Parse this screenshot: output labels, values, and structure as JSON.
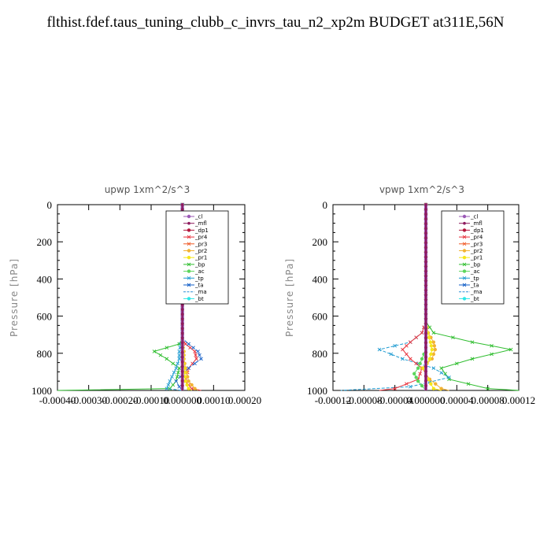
{
  "title": "flthist.fdef.taus_tuning_clubb_c_invrs_tau_n2_xp2m  BUDGET at311E,56N",
  "legend_entries": [
    {
      "name": "_cl",
      "color": "#9b59b6",
      "marker": "circle"
    },
    {
      "name": "_mfl",
      "color": "#8e1b5e",
      "marker": "dot"
    },
    {
      "name": "_dp1",
      "color": "#b3163c",
      "marker": "circle"
    },
    {
      "name": "_pr4",
      "color": "#e8323c",
      "marker": "x"
    },
    {
      "name": "_pr3",
      "color": "#f05a28",
      "marker": "x"
    },
    {
      "name": "_pr2",
      "color": "#f2b233",
      "marker": "circle"
    },
    {
      "name": "_pr1",
      "color": "#f5e61a",
      "marker": "circle"
    },
    {
      "name": "_bp",
      "color": "#2ebd2e",
      "marker": "x"
    },
    {
      "name": "_ac",
      "color": "#5cd65c",
      "marker": "circle"
    },
    {
      "name": "_tp",
      "color": "#1f9bd1",
      "marker": "x"
    },
    {
      "name": "_ta",
      "color": "#1560c8",
      "marker": "x"
    },
    {
      "name": "_ma",
      "color": "#2d8fd5",
      "marker": "line"
    },
    {
      "name": "_bt",
      "color": "#2ee6e6",
      "marker": "circle"
    }
  ],
  "chart_data": [
    {
      "type": "line",
      "title": "upwp   1xm^2/s^3",
      "ylabel": "Pressure [hPa]",
      "xlabel": "",
      "xlim": [
        -0.0004,
        0.0002
      ],
      "ylim": [
        1000,
        0
      ],
      "xticks": [
        -0.0004,
        -0.0003,
        -0.0002,
        -0.0001,
        0.0,
        0.0001,
        0.0002
      ],
      "xtick_labels": [
        "-0.00040",
        "-0.00030",
        "-0.00020",
        "-0.00010",
        "0.000000",
        "0.00010",
        "0.00020"
      ],
      "yticks": [
        0,
        200,
        400,
        600,
        800,
        1000
      ],
      "ytick_labels": [
        "0",
        "200",
        "400",
        "600",
        "800",
        "1000"
      ],
      "legend_position": "top-right",
      "series": [
        {
          "name": "_bp",
          "x": [
            0,
            0,
            -1e-05,
            -9e-05,
            -5e-05,
            -1e-05,
            -2e-05,
            -4e-05,
            -0.0004
          ],
          "y": [
            0,
            720,
            750,
            790,
            830,
            880,
            950,
            990,
            1000
          ]
        },
        {
          "name": "_pr4",
          "x": [
            0,
            0,
            1e-05,
            4e-05,
            4.5e-05,
            2e-05,
            1e-05,
            3e-05,
            6e-05
          ],
          "y": [
            0,
            720,
            750,
            790,
            830,
            880,
            950,
            990,
            1000
          ]
        },
        {
          "name": "_ta",
          "x": [
            0,
            0,
            2e-05,
            5e-05,
            6e-05,
            2e-05,
            -2e-05,
            -1e-05,
            0
          ],
          "y": [
            0,
            720,
            750,
            790,
            830,
            880,
            950,
            980,
            1000
          ]
        },
        {
          "name": "_tp",
          "x": [
            0,
            0,
            -5e-06,
            -1e-05,
            -1e-05,
            -2e-05,
            -4e-05,
            -5e-05,
            0
          ],
          "y": [
            0,
            720,
            750,
            790,
            830,
            880,
            950,
            990,
            1000
          ]
        },
        {
          "name": "_pr2",
          "x": [
            0,
            0,
            0,
            5e-06,
            5e-06,
            1e-05,
            2e-05,
            4e-05,
            5e-05
          ],
          "y": [
            0,
            720,
            750,
            790,
            830,
            880,
            950,
            990,
            1000
          ]
        },
        {
          "name": "_pr1",
          "x": [
            0,
            0,
            0,
            3e-06,
            3e-06,
            6e-06,
            1e-05,
            2e-05,
            3e-05
          ],
          "y": [
            0,
            720,
            750,
            790,
            830,
            880,
            950,
            990,
            1000
          ]
        },
        {
          "name": "_cl",
          "x": [
            0,
            0
          ],
          "y": [
            0,
            1000
          ]
        },
        {
          "name": "_mfl",
          "x": [
            0,
            0
          ],
          "y": [
            0,
            1000
          ]
        }
      ]
    },
    {
      "type": "line",
      "title": "vpwp   1xm^2/s^3",
      "ylabel": "Pressure [hPa]",
      "xlabel": "",
      "xlim": [
        -0.00012,
        0.00012
      ],
      "ylim": [
        1000,
        0
      ],
      "xticks": [
        -0.00012,
        -8e-05,
        -4e-05,
        0.0,
        4e-05,
        8e-05,
        0.00012
      ],
      "xtick_labels": [
        "-0.00012",
        "-0.00008",
        "-0.00004",
        "0.000000",
        "0.00004",
        "0.00008",
        "0.00012"
      ],
      "yticks": [
        0,
        200,
        400,
        600,
        800,
        1000
      ],
      "ytick_labels": [
        "0",
        "200",
        "400",
        "600",
        "800",
        "1000"
      ],
      "legend_position": "top-right",
      "series": [
        {
          "name": "_bp",
          "x": [
            0,
            0,
            1e-05,
            6e-05,
            0.00011,
            6e-05,
            2e-05,
            3e-05,
            8e-05,
            0.00012
          ],
          "y": [
            0,
            630,
            690,
            740,
            780,
            830,
            880,
            940,
            990,
            1000
          ]
        },
        {
          "name": "_tp",
          "x": [
            0,
            0,
            -5e-06,
            -2e-05,
            -6e-05,
            -3e-05,
            1e-05,
            3e-05,
            -2e-05,
            -0.00011
          ],
          "y": [
            0,
            630,
            690,
            740,
            780,
            830,
            880,
            930,
            980,
            1000
          ]
        },
        {
          "name": "_pr4",
          "x": [
            0,
            0,
            -5e-06,
            -2e-05,
            -3e-05,
            -2e-05,
            -5e-06,
            -1e-05,
            -4e-05,
            -6e-05
          ],
          "y": [
            0,
            630,
            690,
            740,
            780,
            830,
            880,
            940,
            990,
            1000
          ]
        },
        {
          "name": "_pr2",
          "x": [
            0,
            0,
            3e-06,
            1e-05,
            1.2e-05,
            8e-06,
            -5e-06,
            5e-06,
            2e-05,
            3e-05
          ],
          "y": [
            0,
            630,
            690,
            740,
            780,
            830,
            880,
            940,
            990,
            1000
          ]
        },
        {
          "name": "_pr1",
          "x": [
            0,
            0,
            2e-06,
            6e-06,
            8e-06,
            5e-06,
            -3e-06,
            3e-06,
            1e-05,
            2e-05
          ],
          "y": [
            0,
            630,
            690,
            740,
            780,
            830,
            880,
            940,
            990,
            1000
          ]
        },
        {
          "name": "_ac",
          "x": [
            0,
            0,
            0,
            0,
            -5e-06,
            -1e-05,
            -1.5e-05,
            -1e-05,
            0
          ],
          "y": [
            0,
            690,
            740,
            780,
            830,
            880,
            910,
            950,
            1000
          ]
        },
        {
          "name": "_cl",
          "x": [
            0,
            0
          ],
          "y": [
            0,
            1000
          ]
        },
        {
          "name": "_mfl",
          "x": [
            0,
            0
          ],
          "y": [
            0,
            1000
          ]
        }
      ]
    }
  ]
}
